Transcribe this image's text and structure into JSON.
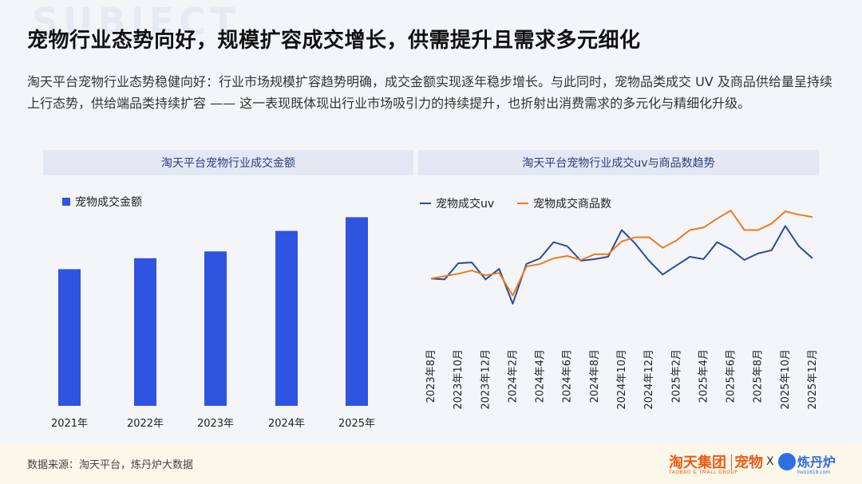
{
  "header": {
    "title": "宠物行业态势向好，规模扩容成交增长，供需提升且需求多元细化",
    "description": "淘天平台宠物行业态势稳健向好：行业市场规模扩容趋势明确，成交金额实现逐年稳步增长。与此同时，宠物品类成交 UV 及商品供给量呈持续上行态势，供给端品类持续扩容 —— 这一表现既体现出行业市场吸引力的持续提升，也折射出消费需求的多元化与精细化升级。"
  },
  "chart_data": [
    {
      "type": "bar",
      "title": "淘天平台宠物行业成交金额",
      "categories": [
        "2021年",
        "2022年",
        "2023年",
        "2024年",
        "2025年"
      ],
      "series": [
        {
          "name": "宠物成交金额",
          "values": [
            100,
            108,
            113,
            128,
            138
          ],
          "color": "#2e54e0"
        }
      ],
      "grid": false,
      "legend": "top-left"
    },
    {
      "type": "line",
      "title": "淘天平台宠物行业成交uv与商品数趋势",
      "x": [
        "2023年8月",
        "2023年9月",
        "2023年10月",
        "2023年11月",
        "2023年12月",
        "2024年1月",
        "2024年2月",
        "2024年3月",
        "2024年4月",
        "2024年5月",
        "2024年6月",
        "2024年7月",
        "2024年8月",
        "2024年9月",
        "2024年10月",
        "2024年11月",
        "2024年12月",
        "2025年1月",
        "2025年2月",
        "2025年3月",
        "2025年4月",
        "2025年5月",
        "2025年6月",
        "2025年7月",
        "2025年8月",
        "2025年9月",
        "2025年10月",
        "2025年11月",
        "2025年12月"
      ],
      "tick_labels": [
        "2023年8月",
        "2023年10月",
        "2023年12月",
        "2024年2月",
        "2024年4月",
        "2024年6月",
        "2024年8月",
        "2024年10月",
        "2024年12月",
        "2025年2月",
        "2025年4月",
        "2025年6月",
        "2025年8月",
        "2025年10月",
        "2025年12月"
      ],
      "series": [
        {
          "name": "宠物成交uv",
          "color": "#2d4a9e",
          "values": [
            100,
            99,
            119,
            120,
            99,
            112,
            69,
            118,
            125,
            145,
            140,
            122,
            124,
            127,
            160,
            143,
            122,
            105,
            116,
            127,
            124,
            145,
            136,
            123,
            131,
            135,
            165,
            140,
            125
          ]
        },
        {
          "name": "宠物成交商品数",
          "color": "#ee7a1f",
          "values": [
            100,
            103,
            106,
            110,
            104,
            107,
            79,
            115,
            118,
            125,
            128,
            123,
            130,
            130,
            146,
            151,
            151,
            138,
            147,
            160,
            163,
            174,
            184,
            160,
            160,
            168,
            183,
            179,
            176
          ]
        }
      ],
      "grid": false,
      "legend": "top-left"
    }
  ],
  "footer": {
    "source": "数据来源：淘天平台，炼丹炉大数据",
    "brand1": "淘天集团",
    "brand1_sub": "TAOBAO & TMALL GROUP",
    "brand2": "宠物",
    "x": "X",
    "brand3": "炼丹炉",
    "brand3_sub": "hoo1618.com"
  }
}
